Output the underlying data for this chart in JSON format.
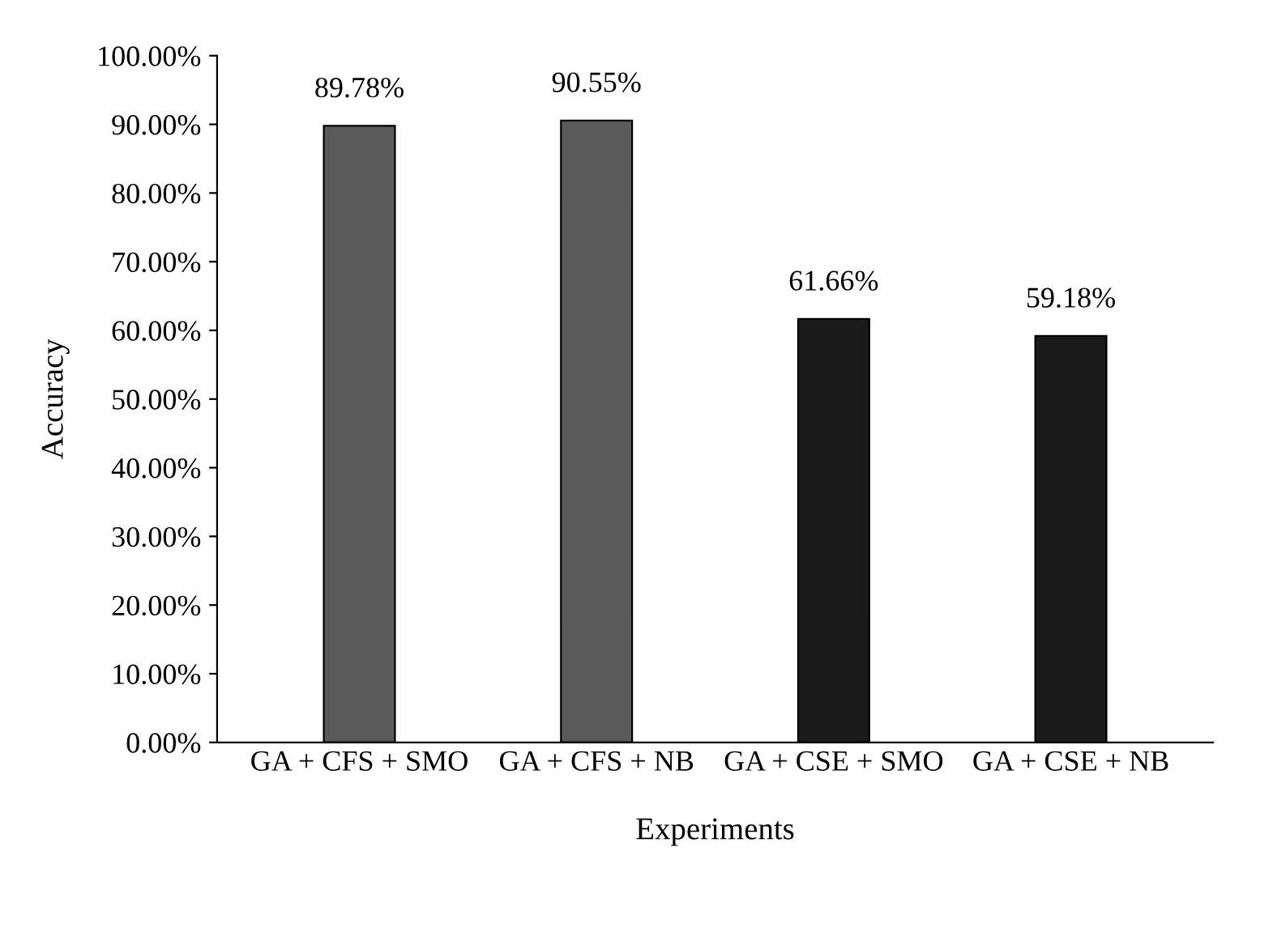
{
  "chart_data": {
    "type": "bar",
    "xlabel": "Experiments",
    "ylabel": "Accuracy",
    "categories": [
      "GA + CFS + SMO",
      "GA + CFS + NB",
      "GA + CSE + SMO",
      "GA + CSE + NB"
    ],
    "values": [
      89.78,
      90.55,
      61.66,
      59.18
    ],
    "value_labels": [
      "89.78%",
      "90.55%",
      "61.66%",
      "59.18%"
    ],
    "colors": [
      "#5a5a5a",
      "#5a5a5a",
      "#1a1a1a",
      "#1a1a1a"
    ],
    "ylim": [
      0,
      100
    ],
    "yticks": [
      {
        "value": 0,
        "label": "0.00%"
      },
      {
        "value": 10,
        "label": "10.00%"
      },
      {
        "value": 20,
        "label": "20.00%"
      },
      {
        "value": 30,
        "label": "30.00%"
      },
      {
        "value": 40,
        "label": "40.00%"
      },
      {
        "value": 50,
        "label": "50.00%"
      },
      {
        "value": 60,
        "label": "60.00%"
      },
      {
        "value": 70,
        "label": "70.00%"
      },
      {
        "value": 80,
        "label": "80.00%"
      },
      {
        "value": 90,
        "label": "90.00%"
      },
      {
        "value": 100,
        "label": "100.00%"
      }
    ],
    "grid": false,
    "legend": false
  }
}
